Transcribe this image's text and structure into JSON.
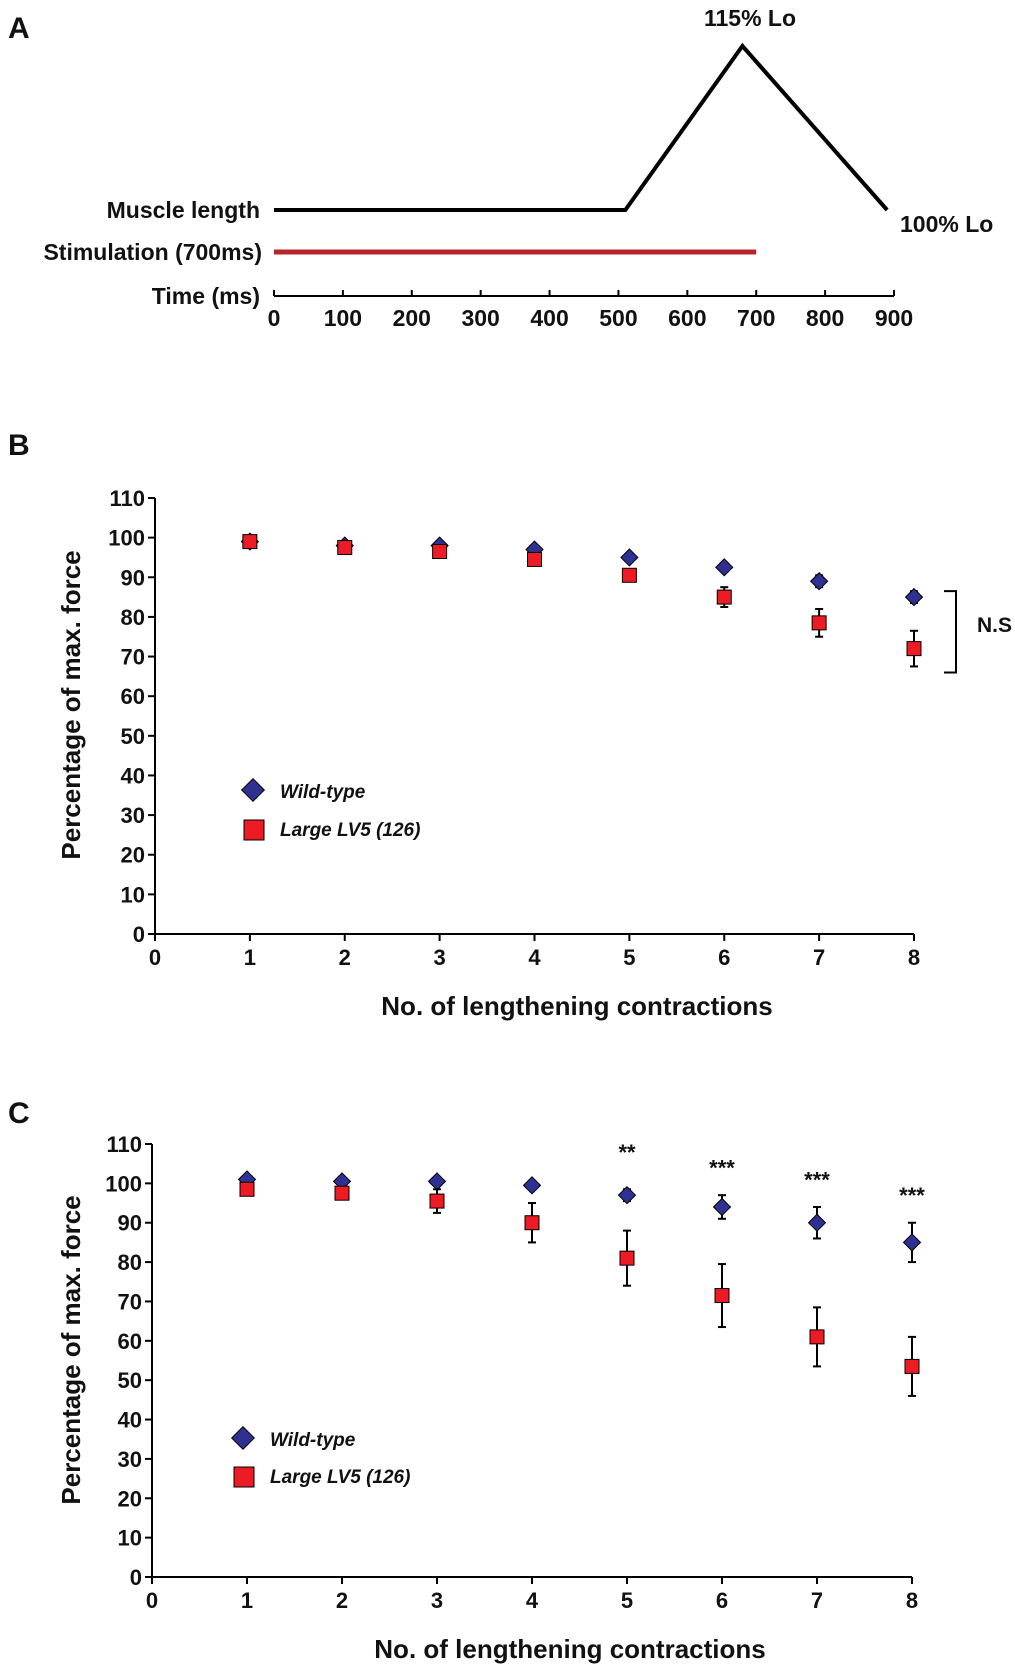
{
  "panel_a": {
    "label": "A",
    "muscle_length_label": "Muscle length",
    "stimulation_label": "Stimulation (700ms)",
    "time_label": "Time (ms)",
    "peak_label": "115% Lo",
    "end_label": "100% Lo",
    "stim_color": "#b5252b",
    "chart_data": {
      "type": "line",
      "xlabel": "Time (ms)",
      "ticks": [
        0,
        100,
        200,
        300,
        400,
        500,
        600,
        700,
        800,
        900
      ],
      "xlim": [
        0,
        900
      ],
      "muscle_length": {
        "x": [
          0,
          510,
          680,
          890
        ],
        "y": [
          100,
          100,
          115,
          100
        ]
      },
      "stimulation": {
        "start": 0,
        "end": 700
      }
    }
  },
  "panel_b": {
    "label": "B",
    "significance": "N.S",
    "chart_data": {
      "type": "scatter",
      "xlabel": "No. of lengthening contractions",
      "ylabel": "Percentage of max. force",
      "xlim": [
        0,
        8
      ],
      "ylim": [
        0,
        110
      ],
      "xticks": [
        0,
        1,
        2,
        3,
        4,
        5,
        6,
        7,
        8
      ],
      "yticks": [
        0,
        10,
        20,
        30,
        40,
        50,
        60,
        70,
        80,
        90,
        100,
        110
      ],
      "x": [
        1,
        2,
        3,
        4,
        5,
        6,
        7,
        8
      ],
      "series": [
        {
          "name": "Wild-type",
          "marker": "diamond",
          "color": "#2e3192",
          "values": [
            99,
            98,
            98,
            97,
            95,
            92.5,
            89,
            85
          ],
          "errors": [
            0.5,
            0.5,
            0.5,
            0.5,
            0.5,
            0.7,
            1.5,
            1.5
          ]
        },
        {
          "name": "Large LV5 (126)",
          "marker": "square",
          "color": "#ed1c24",
          "values": [
            99,
            97.5,
            96.5,
            94.5,
            90.5,
            85,
            78.5,
            72
          ],
          "errors": [
            0.5,
            0.5,
            1,
            1,
            1.5,
            2.5,
            3.5,
            4.5
          ]
        }
      ]
    }
  },
  "panel_c": {
    "label": "C",
    "chart_data": {
      "type": "scatter",
      "xlabel": "No. of lengthening contractions",
      "ylabel": "Percentage of max. force",
      "xlim": [
        0,
        8
      ],
      "ylim": [
        0,
        110
      ],
      "xticks": [
        0,
        1,
        2,
        3,
        4,
        5,
        6,
        7,
        8
      ],
      "yticks": [
        0,
        10,
        20,
        30,
        40,
        50,
        60,
        70,
        80,
        90,
        100,
        110
      ],
      "x": [
        1,
        2,
        3,
        4,
        5,
        6,
        7,
        8
      ],
      "series": [
        {
          "name": "Wild-type",
          "marker": "diamond",
          "color": "#2e3192",
          "values": [
            101,
            100.5,
            100.5,
            99.5,
            97,
            94,
            90,
            85
          ],
          "errors": [
            0.5,
            0.5,
            0.5,
            0.5,
            1.5,
            3,
            4,
            5
          ]
        },
        {
          "name": "Large LV5 (126)",
          "marker": "square",
          "color": "#ed1c24",
          "values": [
            98.5,
            97.5,
            95.5,
            90,
            81,
            71.5,
            61,
            53.5
          ],
          "errors": [
            1,
            1,
            3,
            5,
            7,
            8,
            7.5,
            7.5
          ]
        }
      ],
      "annotations": [
        {
          "x": 5,
          "text": "**",
          "y": 109
        },
        {
          "x": 6,
          "text": "***",
          "y": 105
        },
        {
          "x": 7,
          "text": "***",
          "y": 102
        },
        {
          "x": 8,
          "text": "***",
          "y": 98
        }
      ]
    }
  }
}
